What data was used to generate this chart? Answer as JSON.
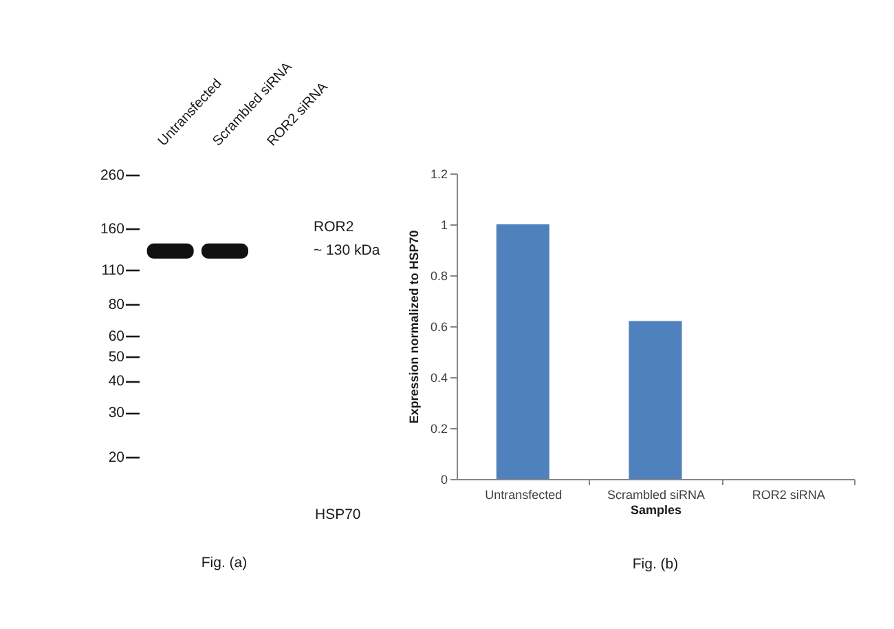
{
  "chart_data": [
    {
      "type": "scatter",
      "categories": [
        "Untransfected",
        "Scrambled siRNA",
        "ROR2 siRNA"
      ],
      "values": [
        130,
        130,
        null
      ],
      "color": "#111111",
      "log": "y",
      "ylim": [
        20,
        260
      ],
      "yticks": [
        260,
        160,
        110,
        80,
        60,
        50,
        40,
        30,
        20
      ],
      "annotations": [
        "ROR2",
        "~ 130 kDa",
        "HSP70",
        "Fig. (a)"
      ]
    },
    {
      "type": "bar",
      "categories": [
        "Untransfected",
        "Scrambled siRNA",
        "ROR2 siRNA"
      ],
      "values": [
        1,
        0.62,
        0
      ],
      "color": "#4f81bd",
      "xlabel": "Samples",
      "ylabel": "Expression normalized to HSP70",
      "ylim": [
        0,
        1.2
      ],
      "yticks": [
        0,
        0.2,
        0.4,
        0.6,
        0.8,
        1,
        1.2
      ],
      "annotations": [
        "Fig. (b)"
      ]
    }
  ]
}
